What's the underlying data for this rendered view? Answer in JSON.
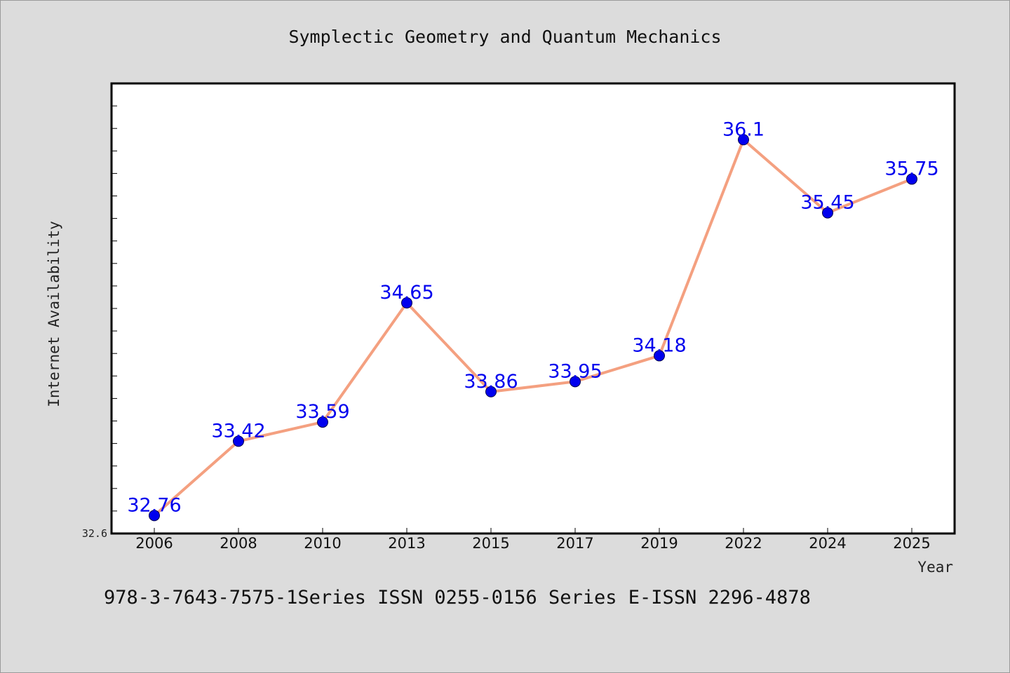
{
  "chart_data": {
    "type": "line",
    "title": "Symplectic Geometry and Quantum Mechanics",
    "xlabel": "Year",
    "ylabel": "Internet Availability",
    "categories": [
      "2006",
      "2008",
      "2010",
      "2013",
      "2015",
      "2017",
      "2019",
      "2022",
      "2024",
      "2025"
    ],
    "series": [
      {
        "values": [
          32.76,
          33.42,
          33.59,
          34.65,
          33.86,
          33.95,
          34.18,
          36.1,
          35.45,
          35.75
        ]
      }
    ],
    "data_labels": [
      "32.76",
      "33.42",
      "33.59",
      "34.65",
      "33.86",
      "33.95",
      "34.18",
      "36.1",
      "35.45",
      "35.75"
    ],
    "ylim": [
      32.6,
      36.6
    ],
    "y_tick_labels": [
      "32.6"
    ],
    "grid": false,
    "line_color": "#f4a080",
    "marker_color": "#0000ee",
    "label_color": "#0000ee"
  },
  "caption": "978-3-7643-7575-1Series ISSN 0255-0156 Series E-ISSN 2296-4878"
}
